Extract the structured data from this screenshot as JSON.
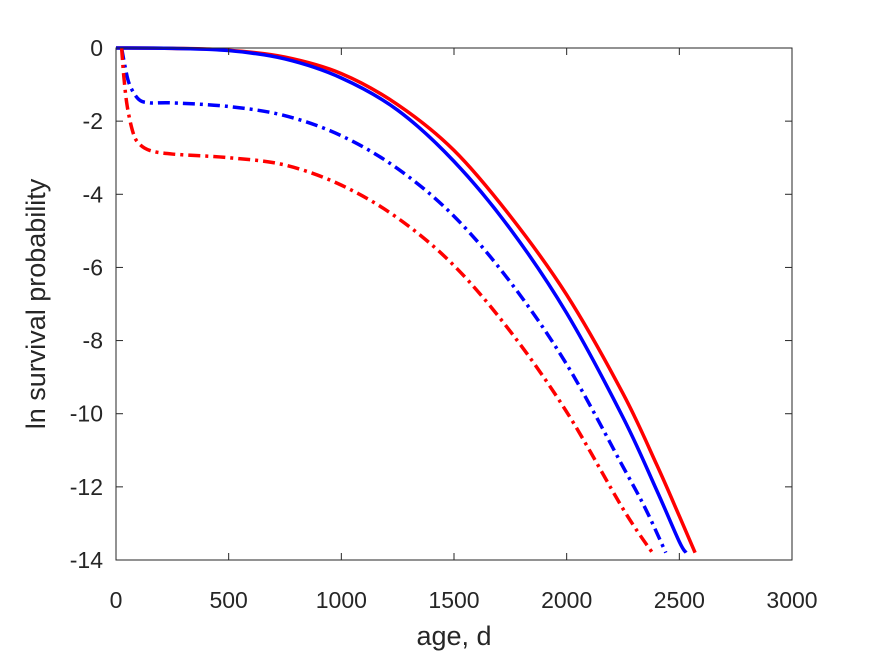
{
  "chart_data": {
    "type": "line",
    "title": "",
    "xlabel": "age, d",
    "ylabel": "ln survival probability",
    "xlim": [
      0,
      3000
    ],
    "ylim": [
      -14,
      0
    ],
    "xticks": [
      0,
      500,
      1000,
      1500,
      2000,
      2500,
      3000
    ],
    "yticks": [
      0,
      -2,
      -4,
      -6,
      -8,
      -10,
      -12,
      -14
    ],
    "xtick_labels": [
      "0",
      "500",
      "1000",
      "1500",
      "2000",
      "2500",
      "3000"
    ],
    "ytick_labels": [
      "0",
      "-2",
      "-4",
      "-6",
      "-8",
      "-10",
      "-12",
      "-14"
    ],
    "grid": false,
    "legend": "none",
    "series": [
      {
        "color": "#ff0000",
        "style": "solid",
        "x": [
          0,
          250,
          500,
          750,
          1000,
          1250,
          1500,
          1750,
          2000,
          2250,
          2400,
          2500,
          2570
        ],
        "y": [
          0,
          -0.01,
          -0.06,
          -0.25,
          -0.7,
          -1.55,
          -2.8,
          -4.6,
          -6.75,
          -9.45,
          -11.4,
          -12.8,
          -13.8
        ]
      },
      {
        "color": "#0000ff",
        "style": "solid",
        "x": [
          0,
          250,
          500,
          750,
          1000,
          1250,
          1500,
          1750,
          2000,
          2250,
          2400,
          2500,
          2530
        ],
        "y": [
          0,
          -0.01,
          -0.07,
          -0.3,
          -0.82,
          -1.7,
          -3.1,
          -4.95,
          -7.25,
          -10.1,
          -12.1,
          -13.5,
          -13.8
        ]
      },
      {
        "color": "#0000ff",
        "style": "dashdot",
        "x": [
          25,
          40,
          60,
          100,
          150,
          250,
          500,
          750,
          1000,
          1250,
          1500,
          1750,
          2000,
          2250,
          2350,
          2440
        ],
        "y": [
          0,
          -0.5,
          -1.0,
          -1.4,
          -1.5,
          -1.5,
          -1.6,
          -1.85,
          -2.4,
          -3.3,
          -4.6,
          -6.4,
          -8.65,
          -11.45,
          -12.6,
          -13.8
        ]
      },
      {
        "color": "#ff0000",
        "style": "dashdot",
        "x": [
          25,
          35,
          50,
          75,
          100,
          150,
          250,
          500,
          750,
          1000,
          1250,
          1500,
          1750,
          2000,
          2250,
          2380
        ],
        "y": [
          0,
          -0.8,
          -1.6,
          -2.3,
          -2.6,
          -2.8,
          -2.9,
          -3.0,
          -3.2,
          -3.75,
          -4.65,
          -5.95,
          -7.75,
          -9.95,
          -12.6,
          -13.8
        ]
      }
    ]
  }
}
